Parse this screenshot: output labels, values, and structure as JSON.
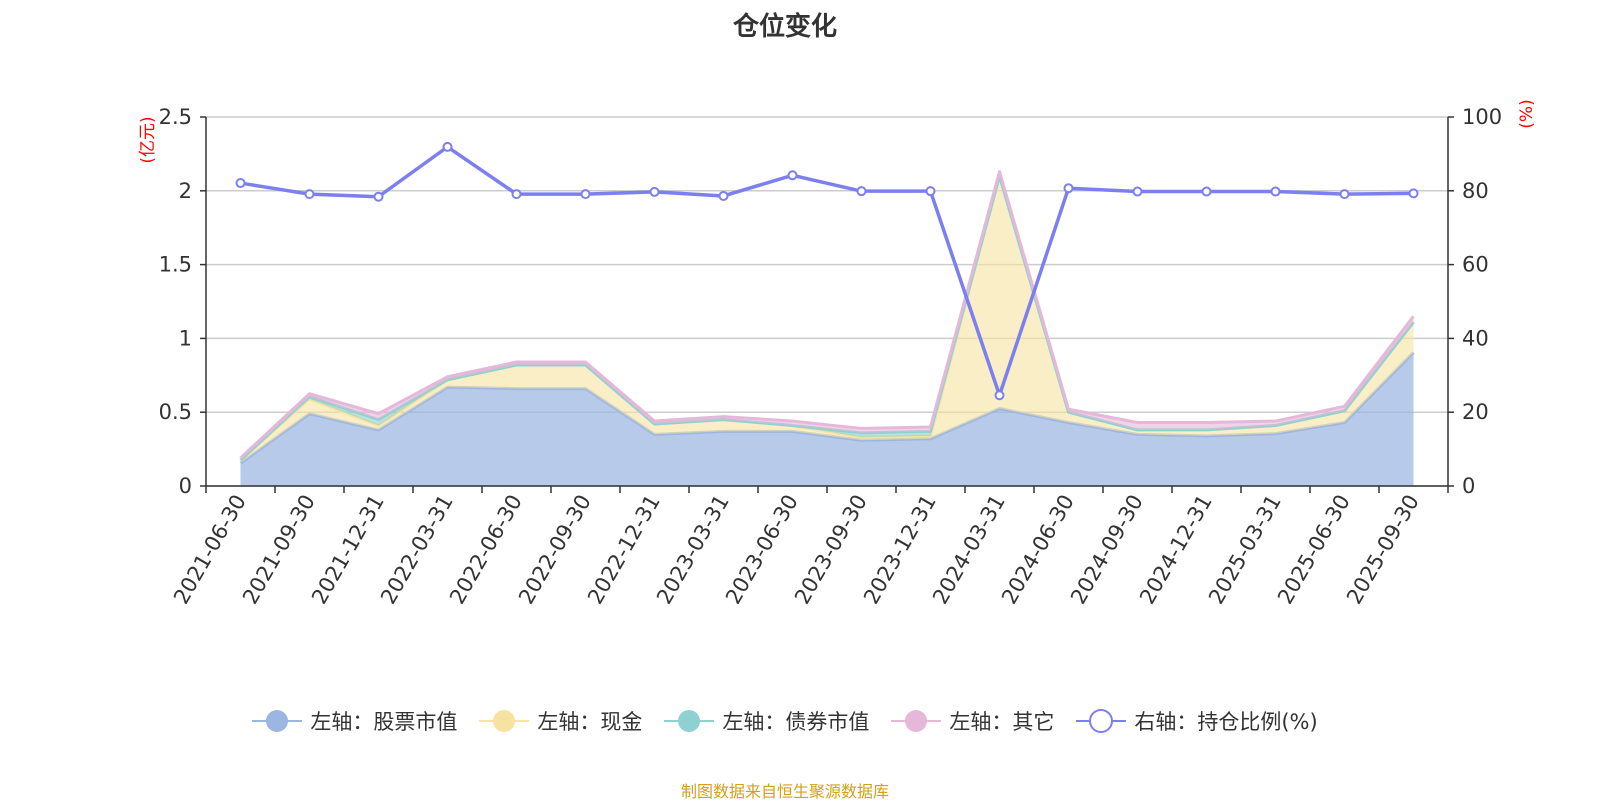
{
  "title": "仓位变化",
  "footer": "制图数据来自恒生聚源数据库",
  "chart_data": {
    "type": "area",
    "stacked": true,
    "title": "仓位变化",
    "left_axis": {
      "unit_label": "(亿元)",
      "range": [
        0,
        2.5
      ],
      "ticks": [
        "0",
        "0.5",
        "1",
        "1.5",
        "2",
        "2.5"
      ]
    },
    "right_axis": {
      "unit_label": "(%)",
      "range": [
        0,
        100
      ],
      "ticks": [
        "0",
        "20",
        "40",
        "60",
        "80",
        "100"
      ]
    },
    "grid": true,
    "legend_position": "bottom",
    "categories": [
      "2021-06-30",
      "2021-09-30",
      "2021-12-31",
      "2022-03-31",
      "2022-06-30",
      "2022-09-30",
      "2022-12-31",
      "2023-03-31",
      "2023-06-30",
      "2023-09-30",
      "2023-12-31",
      "2024-03-31",
      "2024-06-30",
      "2024-09-30",
      "2024-12-31",
      "2025-03-31",
      "2025-06-30",
      "2025-09-30"
    ],
    "series": [
      {
        "name": "左轴：股票市值",
        "axis": "left",
        "type": "area",
        "color": "#9bb6e0",
        "values": [
          0.155,
          0.49,
          0.38,
          0.67,
          0.66,
          0.66,
          0.35,
          0.37,
          0.37,
          0.31,
          0.32,
          0.525,
          0.43,
          0.35,
          0.34,
          0.355,
          0.43,
          0.905
        ]
      },
      {
        "name": "左轴：现金",
        "axis": "left",
        "type": "area",
        "color": "#f6e3a1",
        "values": [
          0.02,
          0.1,
          0.03,
          0.05,
          0.16,
          0.16,
          0.07,
          0.08,
          0.04,
          0.02,
          0.02,
          1.575,
          0.07,
          0.03,
          0.04,
          0.055,
          0.08,
          0.205
        ]
      },
      {
        "name": "左轴：债券市值",
        "axis": "left",
        "type": "area",
        "color": "#8fd1d1",
        "values": [
          0,
          0.015,
          0.04,
          0,
          0,
          0,
          0,
          0,
          0,
          0.03,
          0.03,
          0,
          0,
          0,
          0,
          0,
          0,
          0
        ]
      },
      {
        "name": "左轴：其它",
        "axis": "left",
        "type": "area",
        "color": "#e5b8d9",
        "values": [
          0.015,
          0.02,
          0.04,
          0.02,
          0.02,
          0.02,
          0.02,
          0.02,
          0.03,
          0.03,
          0.03,
          0.03,
          0.02,
          0.05,
          0.05,
          0.03,
          0.03,
          0.04
        ]
      },
      {
        "name": "右轴：持仓比例(%)",
        "axis": "right",
        "type": "line",
        "color": "#7b7ff0",
        "values": [
          82.1,
          79.1,
          78.4,
          91.9,
          79.1,
          79.1,
          79.7,
          78.6,
          84.2,
          79.9,
          79.9,
          24.6,
          80.7,
          79.8,
          79.8,
          79.8,
          79.1,
          79.3
        ]
      }
    ]
  }
}
